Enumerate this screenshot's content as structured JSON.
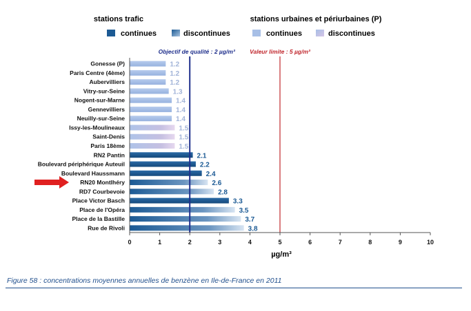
{
  "legend": {
    "traffic_title": "stations trafic",
    "urban_title": "stations urbaines et périurbaines (P)",
    "items": [
      {
        "label": "continues",
        "group": "traffic",
        "kind": "continuous"
      },
      {
        "label": "discontinues",
        "group": "traffic",
        "kind": "discontinuous"
      },
      {
        "label": "continues",
        "group": "urban",
        "kind": "continuous"
      },
      {
        "label": "discontinues",
        "group": "urban",
        "kind": "discontinuous"
      }
    ]
  },
  "reference_lines": [
    {
      "label": "Objectif de qualité : 2 µg/m³",
      "value": 2,
      "color": "#1f2f8c"
    },
    {
      "label": "Valeur limite : 5 µg/m³",
      "value": 5,
      "color": "#c0272d"
    }
  ],
  "highlight": {
    "station": "RN20 Montlhéry",
    "marker": "red-arrow"
  },
  "caption": "Figure 58 : concentrations moyennes annuelles de benzène en Ile-de-France en 2011",
  "colors": {
    "traffic_continuous": "#1c5a94",
    "traffic_label": "#1c5a94",
    "urban_continuous": "#a7bfe6",
    "urban_label": "#a2b4d8",
    "discontinuous_accent": "#c9b8dc",
    "arrow": "#e02020"
  },
  "chart_data": {
    "type": "bar",
    "orientation": "horizontal",
    "categories": [
      "Gonesse (P)",
      "Paris Centre (4ème)",
      "Aubervilliers",
      "Vitry-sur-Seine",
      "Nogent-sur-Marne",
      "Gennevilliers",
      "Neuilly-sur-Seine",
      "Issy-les-Moulineaux",
      "Saint-Denis",
      "Paris 18ème",
      "RN2 Pantin",
      "Boulevard périphérique Auteuil",
      "Boulevard Haussmann",
      "RN20 Montlhéry",
      "RD7 Courbevoie",
      "Place Victor Basch",
      "Place de l'Opéra",
      "Place de la Bastille",
      "Rue de Rivoli"
    ],
    "values": [
      1.2,
      1.2,
      1.2,
      1.3,
      1.4,
      1.4,
      1.4,
      1.5,
      1.5,
      1.5,
      2.1,
      2.2,
      2.4,
      2.6,
      2.8,
      3.3,
      3.5,
      3.7,
      3.8
    ],
    "value_labels": [
      "1.2",
      "1.2",
      "1.2",
      "1.3",
      "1.4",
      "1.4",
      "1.4",
      "1.5",
      "1.5",
      "1.5",
      "2.1",
      "2.2",
      "2.4",
      "2.6",
      "2.8",
      "3.3",
      "3.5",
      "3.7",
      "3.8"
    ],
    "station_types": [
      "urban",
      "urban",
      "urban",
      "urban",
      "urban",
      "urban",
      "urban",
      "urban",
      "urban",
      "urban",
      "traffic",
      "traffic",
      "traffic",
      "traffic",
      "traffic",
      "traffic",
      "traffic",
      "traffic",
      "traffic"
    ],
    "measurement": [
      "continuous",
      "continuous",
      "continuous",
      "continuous",
      "continuous",
      "continuous",
      "continuous",
      "discontinuous",
      "discontinuous",
      "discontinuous",
      "continuous",
      "continuous",
      "continuous",
      "discontinuous",
      "discontinuous",
      "continuous",
      "discontinuous",
      "discontinuous",
      "discontinuous"
    ],
    "xlabel": "µg/m³",
    "ylabel": "",
    "xlim": [
      0,
      10
    ],
    "xticks": [
      "0",
      "1",
      "2",
      "3",
      "4",
      "5",
      "6",
      "7",
      "8",
      "9",
      "10"
    ],
    "grid": false,
    "legend_position": "top"
  }
}
